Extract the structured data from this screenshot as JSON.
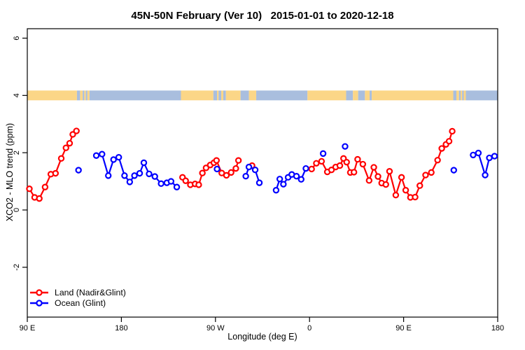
{
  "title": "45N-50N February (Ver 10)   2015-01-01 to 2020-12-18",
  "legend": {
    "items": [
      {
        "label": "Land (Nadir&Glint)",
        "color": "#ff0000"
      },
      {
        "label": "Ocean (Glint)",
        "color": "#0000ff"
      }
    ]
  },
  "chart_data": {
    "type": "line",
    "title": "45N-50N February (Ver 10)   2015-01-01 to 2020-12-18",
    "xlabel": "Longitude (deg E)",
    "ylabel": "XCO2 - MLO trend (ppm)",
    "x_range": [
      90,
      540
    ],
    "y_range": [
      -3.74,
      6.33
    ],
    "grid": false,
    "legend_position": "bottom-left-inside",
    "x_ticks": [
      {
        "v": 90,
        "label": "90 E"
      },
      {
        "v": 180,
        "label": "180"
      },
      {
        "v": 270,
        "label": "90 W"
      },
      {
        "v": 360,
        "label": "0"
      },
      {
        "v": 450,
        "label": "90 E"
      },
      {
        "v": 540,
        "label": "180"
      }
    ],
    "y_ticks": [
      {
        "v": -2,
        "label": "-2"
      },
      {
        "v": 0,
        "label": "0"
      },
      {
        "v": 2,
        "label": "2"
      },
      {
        "v": 4,
        "label": "4"
      },
      {
        "v": 6,
        "label": "6"
      }
    ],
    "map_band": {
      "value": 4,
      "land_color": "#fbd687",
      "ocean_color": "#a9bede",
      "segments": [
        [
          "land",
          90,
          137.5
        ],
        [
          "ocean",
          137.5,
          140.5
        ],
        [
          "land",
          140.5,
          143
        ],
        [
          "ocean",
          143,
          144.5
        ],
        [
          "land",
          144.5,
          146
        ],
        [
          "ocean",
          146,
          147.5
        ],
        [
          "land",
          147.5,
          149.5
        ],
        [
          "ocean",
          149.5,
          237
        ],
        [
          "land",
          237,
          268
        ],
        [
          "ocean",
          268,
          271.5
        ],
        [
          "land",
          271.5,
          273
        ],
        [
          "ocean",
          273,
          275.5
        ],
        [
          "land",
          275.5,
          277.5
        ],
        [
          "ocean",
          277.5,
          280
        ],
        [
          "land",
          280,
          294
        ],
        [
          "ocean",
          294,
          302
        ],
        [
          "land",
          302,
          309
        ],
        [
          "ocean",
          309,
          358
        ],
        [
          "land",
          358,
          395
        ],
        [
          "ocean",
          395,
          401.5
        ],
        [
          "land",
          401.5,
          406.5
        ],
        [
          "ocean",
          406.5,
          413
        ],
        [
          "land",
          413,
          417.5
        ],
        [
          "ocean",
          417.5,
          419.5
        ],
        [
          "land",
          419.5,
          497.5
        ],
        [
          "ocean",
          497.5,
          500.5
        ],
        [
          "land",
          500.5,
          503
        ],
        [
          "ocean",
          503,
          504.5
        ],
        [
          "land",
          504.5,
          506
        ],
        [
          "ocean",
          506,
          507.5
        ],
        [
          "land",
          507.5,
          509.5
        ],
        [
          "ocean",
          509.5,
          540
        ]
      ]
    },
    "series": [
      {
        "name": "Land (Nadir&Glint)",
        "color": "#ff0000",
        "segments": [
          [
            [
              92,
              0.74
            ],
            [
              97,
              0.44
            ],
            [
              101.5,
              0.4
            ],
            [
              107,
              0.8
            ],
            [
              112.5,
              1.25
            ],
            [
              117,
              1.28
            ],
            [
              122.5,
              1.8
            ],
            [
              127,
              2.17
            ],
            [
              130.5,
              2.33
            ],
            [
              133.5,
              2.64
            ],
            [
              137,
              2.76
            ]
          ],
          [
            [
              238.5,
              1.14
            ],
            [
              241.5,
              1.02
            ],
            [
              246,
              0.88
            ],
            [
              250.5,
              0.91
            ],
            [
              254,
              0.88
            ],
            [
              257.5,
              1.29
            ],
            [
              261,
              1.47
            ],
            [
              265,
              1.57
            ],
            [
              268.5,
              1.65
            ],
            [
              271,
              1.73
            ],
            [
              276,
              1.29
            ],
            [
              280.5,
              1.21
            ],
            [
              285,
              1.31
            ],
            [
              289.5,
              1.45
            ],
            [
              292,
              1.73
            ]
          ],
          [
            [
              305,
              1.55
            ]
          ],
          [
            [
              362,
              1.43
            ],
            [
              366.5,
              1.63
            ],
            [
              371.5,
              1.7
            ],
            [
              377,
              1.33
            ],
            [
              381,
              1.4
            ],
            [
              385,
              1.5
            ],
            [
              389,
              1.55
            ],
            [
              392.5,
              1.8
            ],
            [
              395.5,
              1.67
            ],
            [
              399,
              1.31
            ],
            [
              402.5,
              1.32
            ],
            [
              406,
              1.77
            ],
            [
              411,
              1.6
            ],
            [
              417,
              1.03
            ],
            [
              421.5,
              1.49
            ],
            [
              425.5,
              1.17
            ],
            [
              429,
              0.94
            ],
            [
              433,
              0.89
            ],
            [
              436.5,
              1.35
            ],
            [
              442.5,
              0.52
            ],
            [
              448,
              1.14
            ],
            [
              452,
              0.69
            ],
            [
              456.5,
              0.44
            ],
            [
              461,
              0.45
            ],
            [
              465.5,
              0.85
            ],
            [
              471,
              1.22
            ],
            [
              476.5,
              1.31
            ],
            [
              482.5,
              1.74
            ],
            [
              486.5,
              2.15
            ],
            [
              490.5,
              2.29
            ],
            [
              493.5,
              2.4
            ],
            [
              496.5,
              2.75
            ]
          ]
        ]
      },
      {
        "name": "Ocean (Glint)",
        "color": "#0000ff",
        "segments": [
          [
            [
              139,
              1.39
            ]
          ],
          [
            [
              156,
              1.9
            ],
            [
              161.5,
              1.95
            ],
            [
              167.5,
              1.2
            ],
            [
              172.5,
              1.76
            ],
            [
              177.5,
              1.84
            ],
            [
              183,
              1.2
            ],
            [
              188,
              0.98
            ],
            [
              192.5,
              1.2
            ],
            [
              197.5,
              1.28
            ],
            [
              201.5,
              1.65
            ],
            [
              206.5,
              1.26
            ],
            [
              212,
              1.17
            ],
            [
              218,
              0.92
            ],
            [
              223.5,
              0.95
            ],
            [
              227.5,
              1.0
            ],
            [
              233,
              0.8
            ]
          ],
          [
            [
              271.5,
              1.43
            ]
          ],
          [
            [
              299,
              1.18
            ],
            [
              302,
              1.5
            ],
            [
              308,
              1.4
            ],
            [
              312,
              0.95
            ]
          ],
          [
            [
              328,
              0.69
            ],
            [
              331.5,
              1.08
            ],
            [
              335,
              0.9
            ],
            [
              339.5,
              1.14
            ],
            [
              343,
              1.24
            ],
            [
              347.5,
              1.18
            ],
            [
              352,
              1.07
            ],
            [
              356.5,
              1.45
            ]
          ],
          [
            [
              373,
              1.97
            ]
          ],
          [
            [
              394,
              2.22
            ]
          ],
          [
            [
              498,
              1.39
            ]
          ],
          [
            [
              516.5,
              1.92
            ],
            [
              521.5,
              1.99
            ],
            [
              528,
              1.22
            ],
            [
              532,
              1.82
            ],
            [
              537,
              1.88
            ]
          ]
        ]
      }
    ]
  }
}
